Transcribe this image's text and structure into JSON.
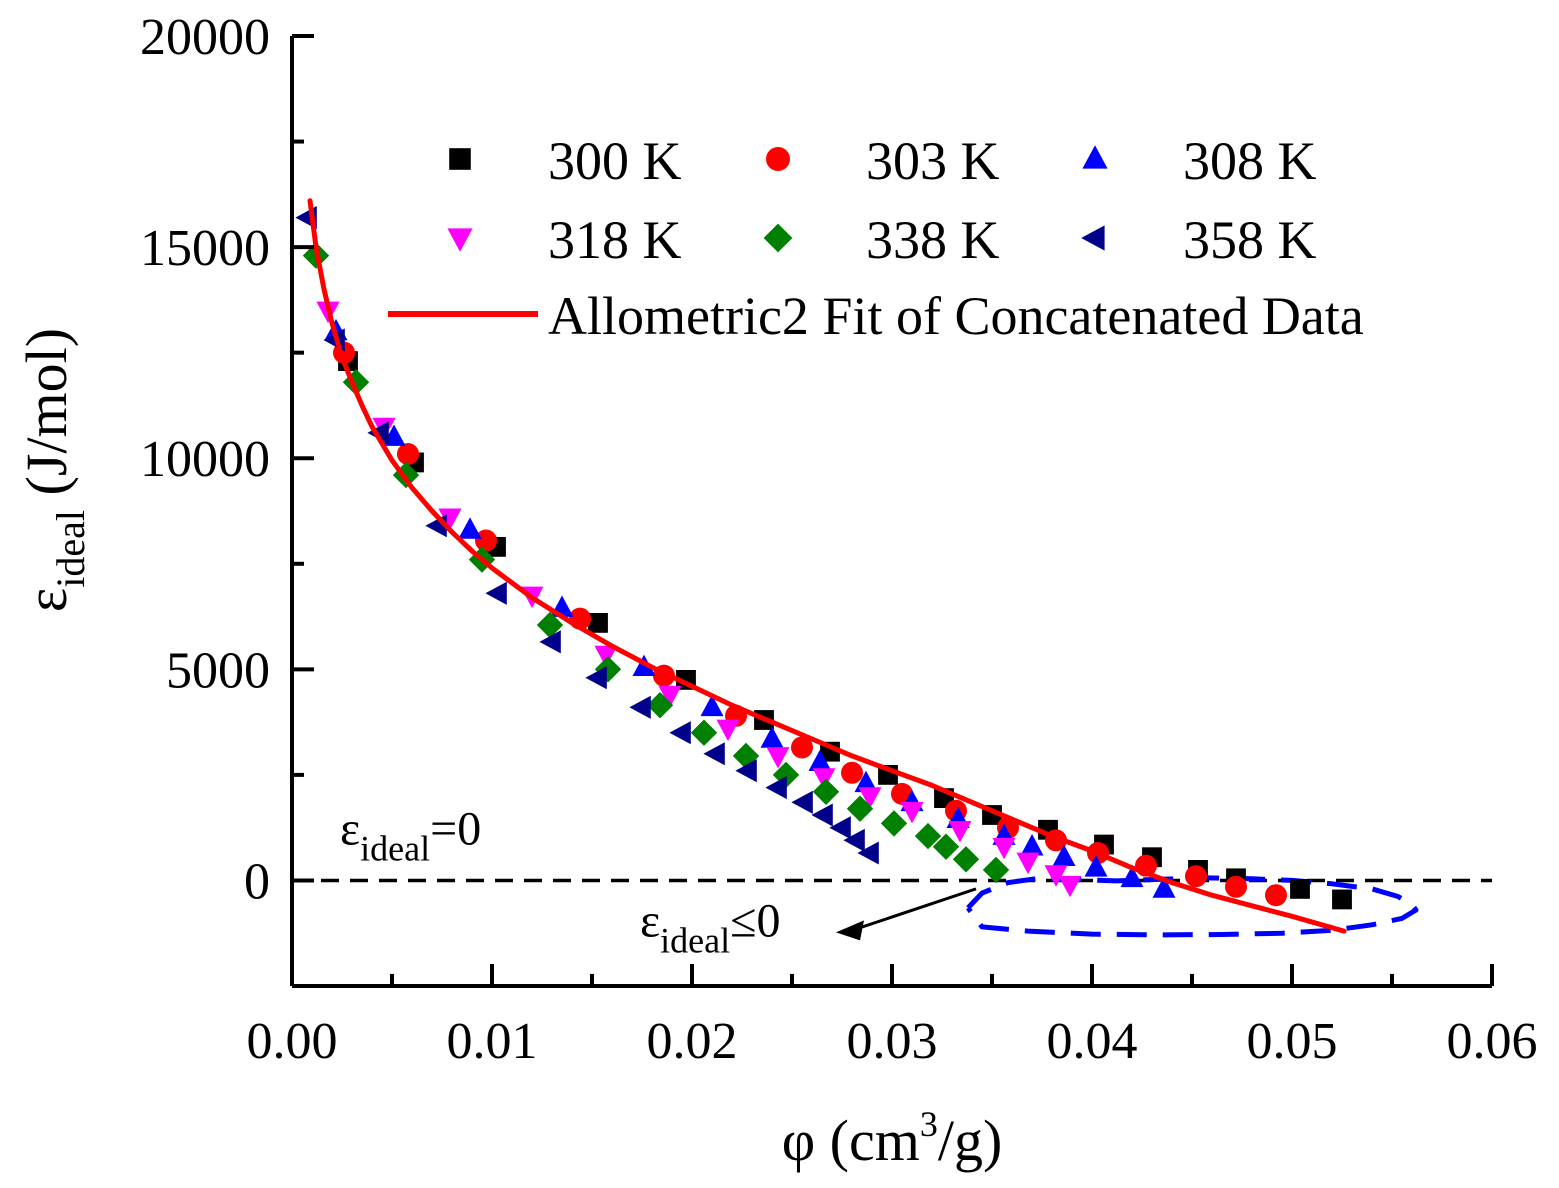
{
  "chart_data": {
    "type": "scatter",
    "xlabel": {
      "prefix": "φ (cm",
      "sup": "3",
      "suffix": "/g)"
    },
    "ylabel": {
      "main": "ε",
      "sub": "ideal",
      "unit": " (J/mol)"
    },
    "xlim": [
      0,
      0.06
    ],
    "ylim": [
      -2500,
      20000
    ],
    "xticks": [
      0,
      0.01,
      0.02,
      0.03,
      0.04,
      0.05,
      0.06
    ],
    "xtick_labels": [
      "0.00",
      "0.01",
      "0.02",
      "0.03",
      "0.04",
      "0.05",
      "0.06"
    ],
    "yticks": [
      0,
      5000,
      10000,
      15000,
      20000
    ],
    "ytick_labels": [
      "0",
      "5000",
      "10000",
      "15000",
      "20000"
    ],
    "series": [
      {
        "name": "300 K",
        "marker": "square",
        "color": "#000000",
        "x": [
          0.0028,
          0.0061,
          0.0102,
          0.0153,
          0.0197,
          0.0236,
          0.0269,
          0.0298,
          0.0326,
          0.035,
          0.0378,
          0.0406,
          0.043,
          0.0453,
          0.0472,
          0.0504,
          0.0525
        ],
        "y": [
          12300,
          9900,
          7900,
          6100,
          4750,
          3800,
          3050,
          2500,
          1950,
          1550,
          1200,
          850,
          550,
          250,
          50,
          -200,
          -450
        ]
      },
      {
        "name": "303 K",
        "marker": "circle",
        "color": "#ff0000",
        "x": [
          0.0026,
          0.0058,
          0.0097,
          0.0144,
          0.0186,
          0.0222,
          0.0255,
          0.028,
          0.0305,
          0.0332,
          0.0358,
          0.0382,
          0.0403,
          0.0427,
          0.0452,
          0.0472,
          0.0492
        ],
        "y": [
          12500,
          10100,
          8050,
          6200,
          4850,
          3900,
          3150,
          2550,
          2050,
          1650,
          1250,
          950,
          650,
          350,
          100,
          -150,
          -350
        ]
      },
      {
        "name": "308 K",
        "marker": "triangle-up",
        "color": "#0000ff",
        "x": [
          0.0022,
          0.0051,
          0.0089,
          0.0135,
          0.0176,
          0.021,
          0.024,
          0.0264,
          0.0287,
          0.031,
          0.0333,
          0.0356,
          0.037,
          0.0386,
          0.0402,
          0.042,
          0.0436
        ],
        "y": [
          13000,
          10500,
          8300,
          6450,
          5050,
          4100,
          3350,
          2800,
          2300,
          1850,
          1450,
          1050,
          800,
          550,
          300,
          50,
          -200
        ]
      },
      {
        "name": "318 K",
        "marker": "triangle-down",
        "color": "#ff00ff",
        "x": [
          0.0018,
          0.0046,
          0.0079,
          0.012,
          0.0157,
          0.0189,
          0.0218,
          0.0243,
          0.0266,
          0.0289,
          0.031,
          0.0334,
          0.0356,
          0.0368,
          0.0382,
          0.0389
        ],
        "y": [
          13500,
          10750,
          8600,
          6750,
          5350,
          4400,
          3600,
          2950,
          2450,
          2000,
          1650,
          1200,
          800,
          450,
          150,
          -100
        ]
      },
      {
        "name": "338 K",
        "marker": "diamond",
        "color": "#008000",
        "x": [
          0.0012,
          0.0032,
          0.0057,
          0.0095,
          0.0129,
          0.0158,
          0.0184,
          0.0206,
          0.0227,
          0.0247,
          0.0267,
          0.0284,
          0.0301,
          0.0318,
          0.0327,
          0.0337,
          0.0352
        ],
        "y": [
          14800,
          11800,
          9600,
          7600,
          6050,
          5000,
          4150,
          3500,
          2950,
          2500,
          2100,
          1700,
          1350,
          1050,
          800,
          500,
          250
        ]
      },
      {
        "name": "358 K",
        "marker": "triangle-left",
        "color": "#00008b",
        "x": [
          0.0008,
          0.0022,
          0.0044,
          0.0073,
          0.0103,
          0.013,
          0.0153,
          0.0175,
          0.0195,
          0.0212,
          0.0228,
          0.0243,
          0.0256,
          0.0266,
          0.0275,
          0.0282,
          0.0289
        ],
        "y": [
          15700,
          12800,
          10600,
          8400,
          6800,
          5650,
          4800,
          4100,
          3500,
          3000,
          2600,
          2200,
          1850,
          1550,
          1250,
          950,
          650
        ]
      }
    ],
    "fit": {
      "name": "Allometric2 Fit of Concatenated Data",
      "color": "#ff0000",
      "x": [
        0.0009,
        0.0012,
        0.0016,
        0.002,
        0.0025,
        0.003,
        0.0035,
        0.004,
        0.005,
        0.006,
        0.007,
        0.008,
        0.009,
        0.01,
        0.012,
        0.014,
        0.016,
        0.018,
        0.02,
        0.022,
        0.024,
        0.026,
        0.028,
        0.03,
        0.032,
        0.034,
        0.036,
        0.038,
        0.04,
        0.042,
        0.044,
        0.046,
        0.048,
        0.05,
        0.0526
      ],
      "y": [
        16100,
        15000,
        14000,
        13200,
        12400,
        11800,
        11250,
        10750,
        9950,
        9300,
        8750,
        8250,
        7800,
        7400,
        6700,
        6100,
        5550,
        5050,
        4600,
        4150,
        3750,
        3350,
        2950,
        2600,
        2250,
        1850,
        1450,
        1050,
        700,
        300,
        -50,
        -350,
        -600,
        -850,
        -1200
      ]
    },
    "reference_line": {
      "y": 0,
      "style": "dashed",
      "color": "#000000"
    },
    "region_outline": {
      "style": "dashed",
      "color": "#0000ff",
      "x": [
        0.0338,
        0.0345,
        0.0358,
        0.0375,
        0.0393,
        0.0412,
        0.0435,
        0.0458,
        0.048,
        0.05,
        0.052,
        0.054,
        0.0553,
        0.056,
        0.0562,
        0.0555,
        0.054,
        0.052,
        0.0495,
        0.0465,
        0.0432,
        0.04,
        0.0368,
        0.0345,
        0.0338
      ],
      "y": [
        -650,
        -300,
        -50,
        60,
        20,
        -10,
        30,
        60,
        40,
        0,
        -80,
        -200,
        -380,
        -580,
        -700,
        -900,
        -1050,
        -1180,
        -1250,
        -1280,
        -1290,
        -1270,
        -1200,
        -1100,
        -650
      ]
    },
    "annotations": [
      {
        "main": "ε",
        "sub": "ideal",
        "rest": "=0",
        "x": 0.0024,
        "y": 850
      },
      {
        "main": "ε",
        "sub": "ideal",
        "rest": "≤0",
        "x": 0.0174,
        "y": -1330
      }
    ],
    "legend_position": "top-right"
  }
}
